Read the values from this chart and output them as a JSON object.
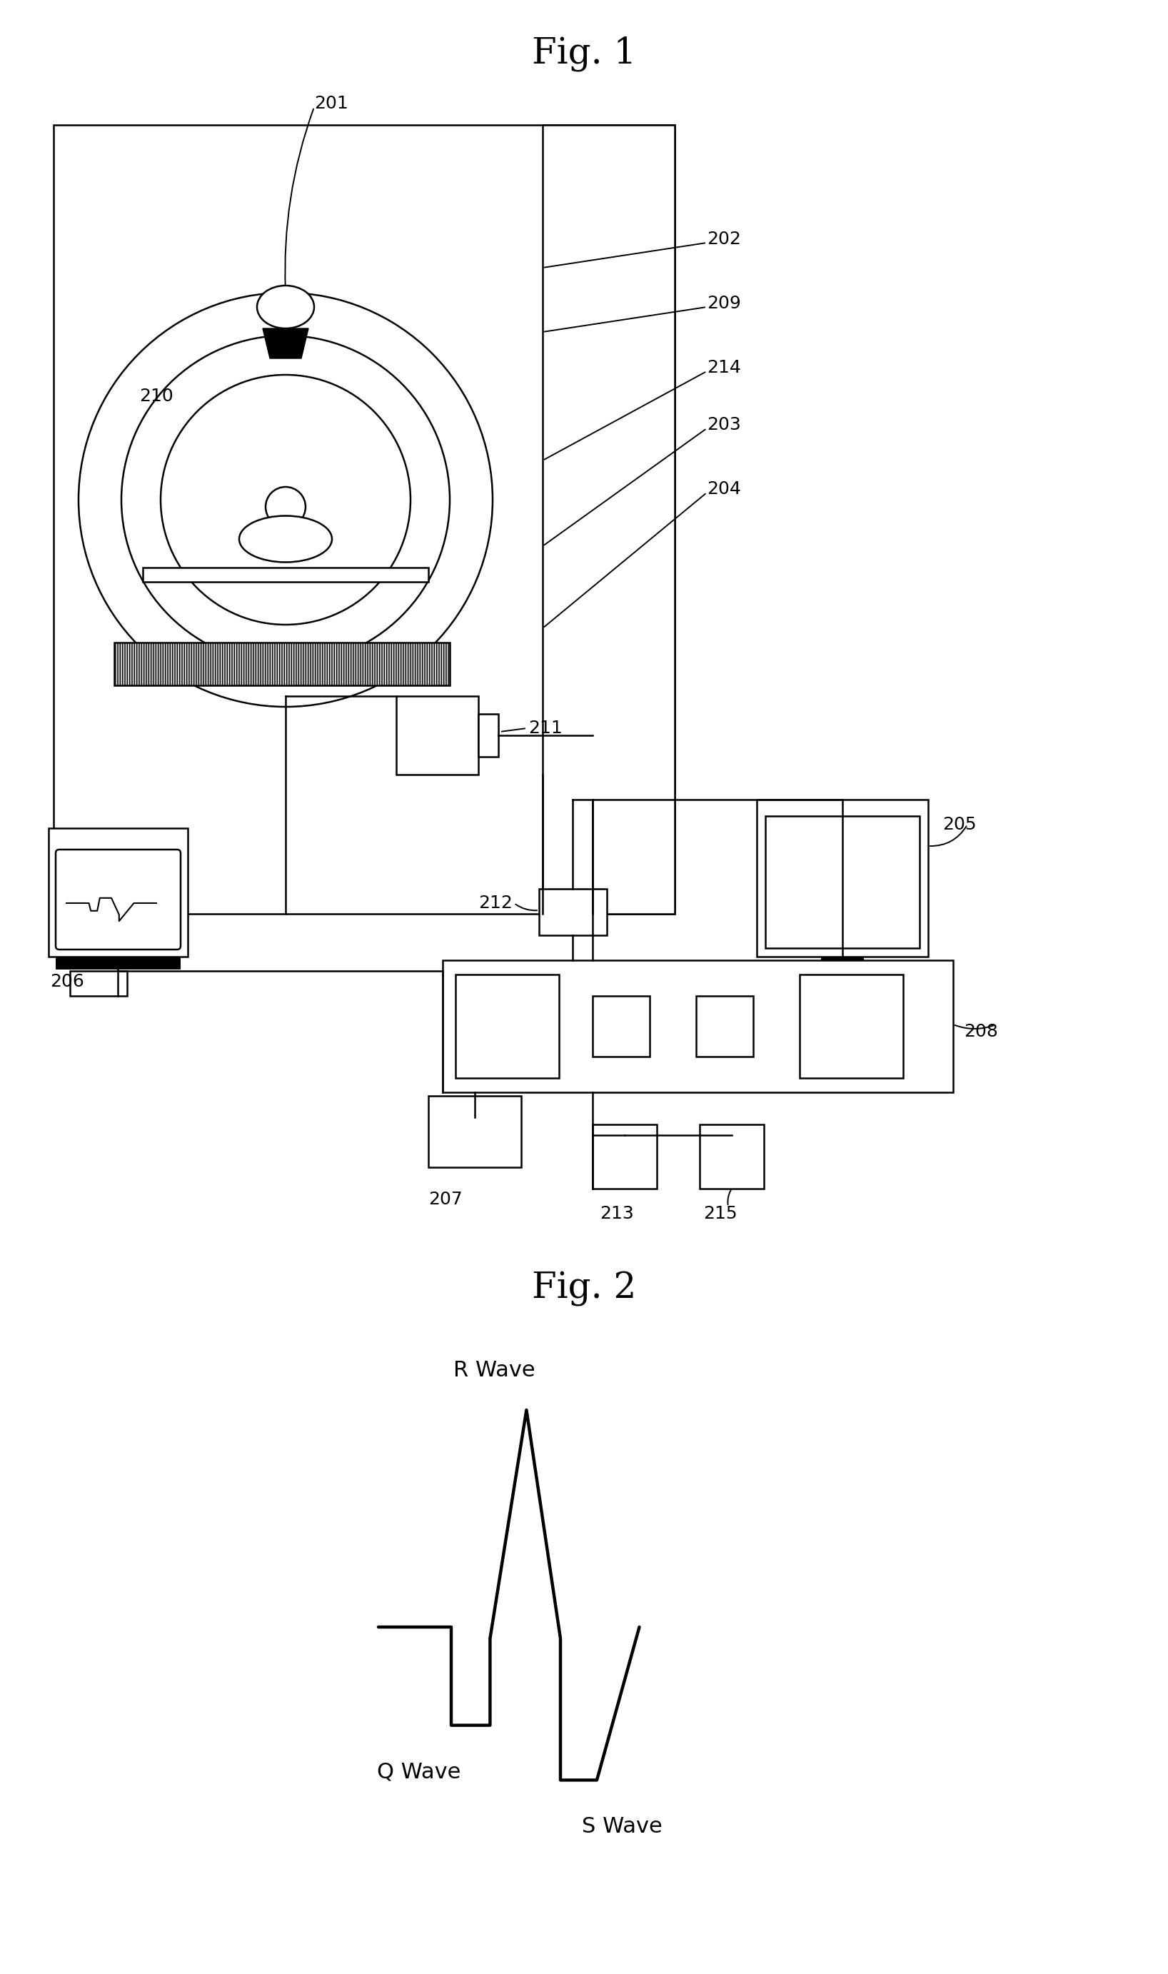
{
  "fig1_title": "Fig. 1",
  "fig2_title": "Fig. 2",
  "bg_color": "#ffffff",
  "lw": 1.8,
  "label_fs": 18,
  "title_fs": 36,
  "ecg_label_fs": 22,
  "r_wave_label": "R Wave",
  "q_wave_label": "Q Wave",
  "s_wave_label": "S Wave"
}
